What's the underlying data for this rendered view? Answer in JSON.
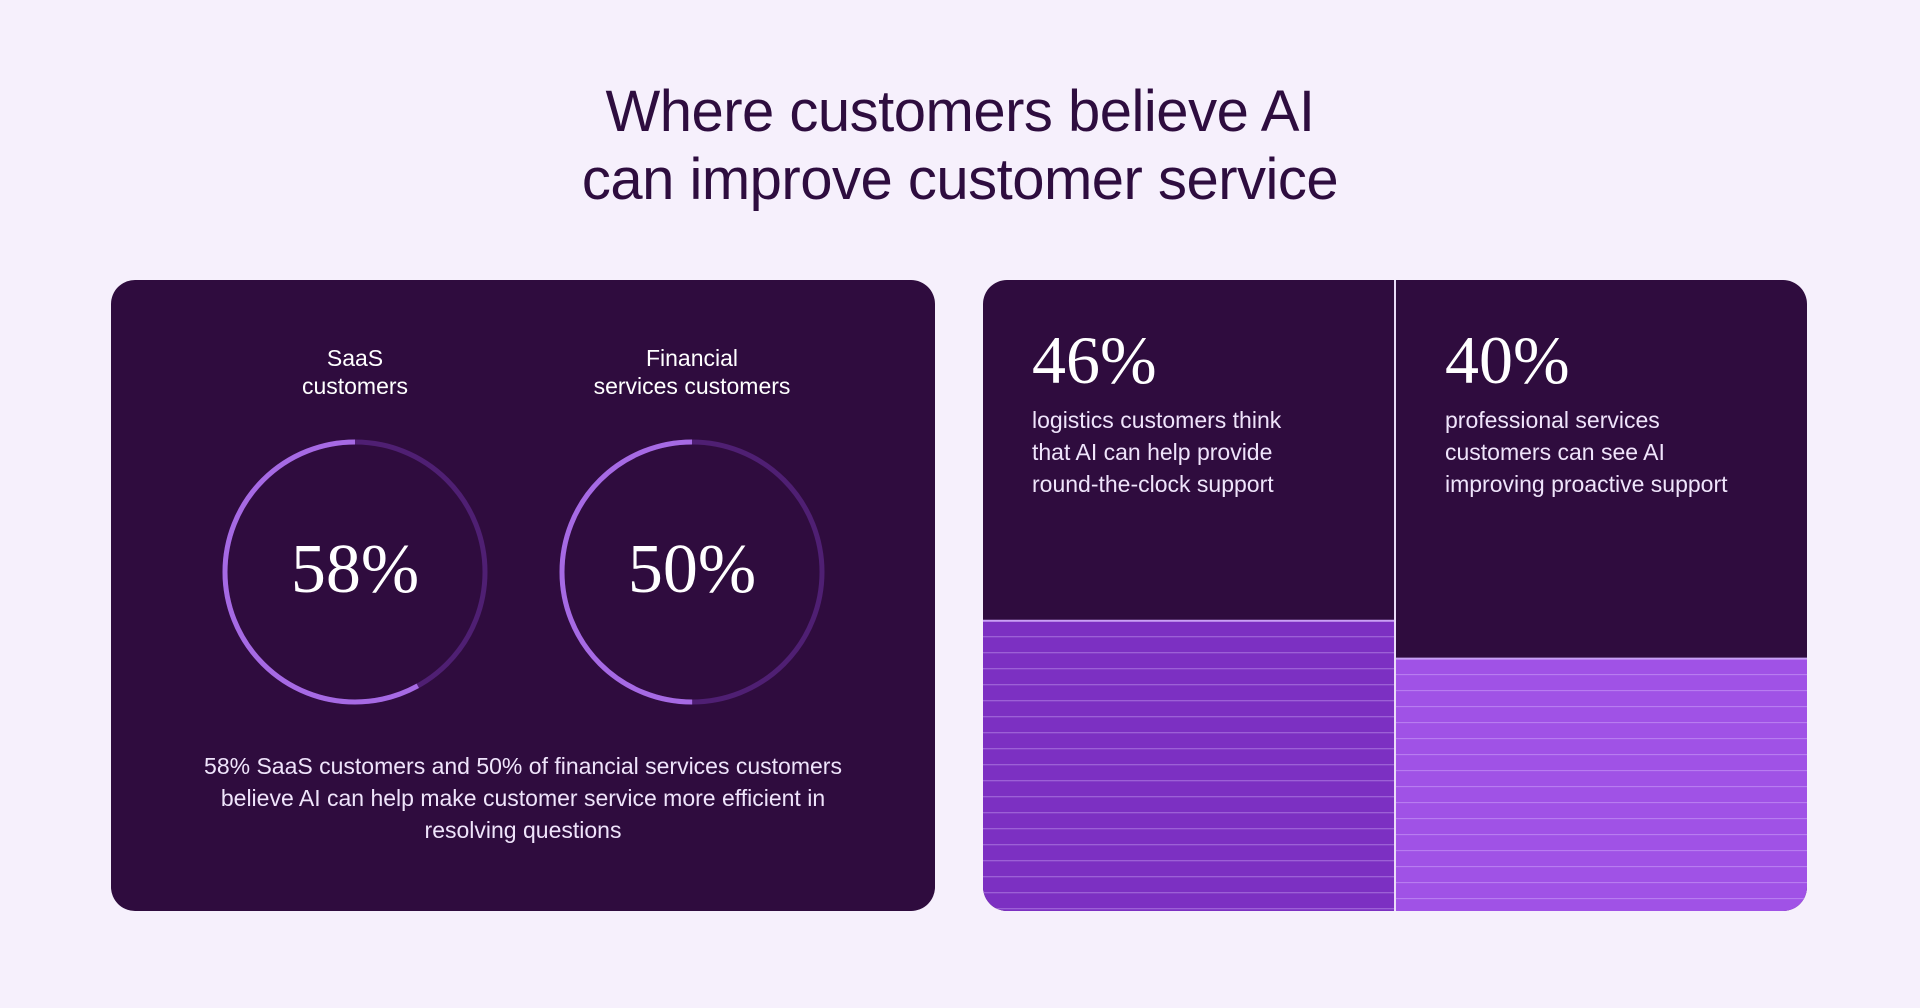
{
  "title": [
    "Where customers believe AI",
    "can improve customer service"
  ],
  "rings": {
    "track_color": "#4f1f73",
    "arc_color": "#a66ae4",
    "items": [
      {
        "label": [
          "SaaS",
          "customers"
        ],
        "value": 58,
        "value_label": "58%"
      },
      {
        "label": [
          "Financial",
          "services customers"
        ],
        "value": 50,
        "value_label": "50%"
      }
    ],
    "note": [
      "58% SaaS customers and 50% of financial services customers",
      "believe AI can help make customer service more efficient in",
      "resolving questions"
    ]
  },
  "bars": [
    {
      "value": 46,
      "value_label": "46%",
      "color": "#7c30c2",
      "text": [
        "logistics customers think",
        "that AI can help provide",
        "round-the-clock support"
      ]
    },
    {
      "value": 40,
      "value_label": "40%",
      "color": "#a052e6",
      "text": [
        "professional services",
        "customers can see AI",
        "improving proactive support"
      ]
    }
  ]
}
